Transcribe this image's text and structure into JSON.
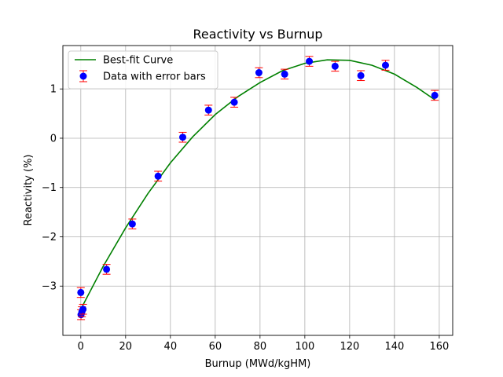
{
  "chart_data": {
    "type": "scatter",
    "title": "Reactivity vs Burnup",
    "xlabel": "Burnup (MWd/kgHM)",
    "ylabel": "Reactivity (%)",
    "xlim": [
      -8,
      166
    ],
    "ylim": [
      -4.0,
      1.88
    ],
    "x_ticks": [
      0,
      20,
      40,
      60,
      80,
      100,
      120,
      140,
      160
    ],
    "y_ticks": [
      -3,
      -2,
      -1,
      0,
      1
    ],
    "grid": true,
    "legend_position": "top-left",
    "series": [
      {
        "name": "Data with error bars",
        "kind": "errorbar",
        "color": "#0000ff",
        "error_color": "#ff0000",
        "error": 0.1,
        "x": [
          0,
          0.1,
          0.5,
          1,
          11.5,
          23,
          34.5,
          45.5,
          57,
          68.5,
          79.5,
          91,
          102,
          113.5,
          125,
          136,
          158
        ],
        "y": [
          -3.13,
          -3.58,
          -3.52,
          -3.47,
          -2.66,
          -1.74,
          -0.77,
          0.02,
          0.57,
          0.73,
          1.33,
          1.3,
          1.56,
          1.46,
          1.27,
          1.48,
          0.87
        ]
      },
      {
        "name": "Best-fit Curve",
        "kind": "line",
        "color": "#008000",
        "x": [
          0,
          10,
          20,
          30,
          40,
          50,
          60,
          70,
          80,
          90,
          100,
          110,
          120,
          130,
          140,
          150,
          158
        ],
        "y": [
          -3.47,
          -2.6,
          -1.82,
          -1.12,
          -0.5,
          0.03,
          0.48,
          0.84,
          1.13,
          1.37,
          1.52,
          1.59,
          1.58,
          1.48,
          1.3,
          1.03,
          0.78
        ]
      }
    ]
  }
}
